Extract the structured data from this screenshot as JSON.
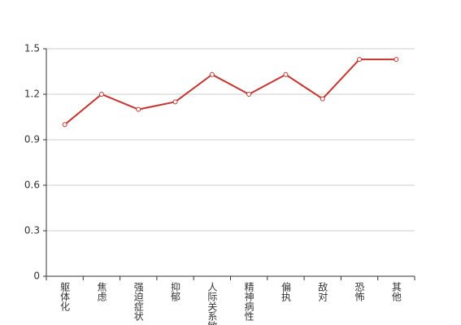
{
  "chart_data": {
    "type": "line",
    "categories": [
      "躯体化",
      "焦虑",
      "强迫症状",
      "抑郁",
      "人际关系敏感",
      "精神病性",
      "偏执",
      "敌对",
      "恐怖",
      "其他"
    ],
    "series": [
      {
        "color": "#c23531",
        "values": [
          1.0,
          1.2,
          1.1,
          1.15,
          1.33,
          1.2,
          1.33,
          1.17,
          1.43,
          1.43
        ]
      }
    ],
    "ylim": [
      0,
      1.5
    ],
    "yticks": [
      0,
      0.3,
      0.6,
      0.9,
      1.2,
      1.5
    ],
    "grid": true
  }
}
